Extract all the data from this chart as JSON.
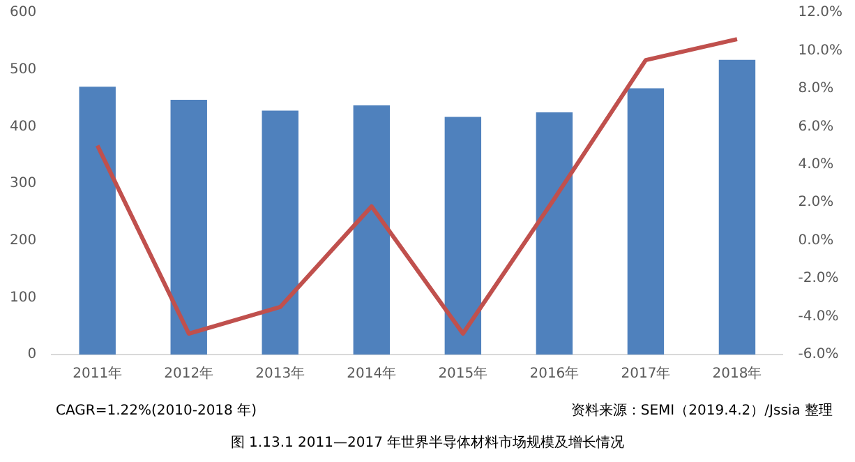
{
  "chart_data": {
    "type": "bar",
    "categories": [
      "2011年",
      "2012年",
      "2013年",
      "2014年",
      "2015年",
      "2016年",
      "2017年",
      "2018年"
    ],
    "series": [
      {
        "color": "#4f81bd",
        "values": [
          470,
          447,
          428,
          437,
          417,
          425,
          467,
          517
        ]
      },
      {
        "type": "line",
        "axis": "y2",
        "color": "#c0504d",
        "marker": "none",
        "values": [
          5.0,
          -4.9,
          -3.5,
          1.8,
          -4.9,
          2.2,
          9.5,
          10.6
        ]
      }
    ],
    "ylim": [
      0,
      600
    ],
    "yticks": [
      0,
      100,
      200,
      300,
      400,
      500,
      600
    ],
    "y2lim": [
      -6,
      12
    ],
    "y2ticks": [
      {
        "value": -6,
        "label": "-6.0%"
      },
      {
        "value": -4,
        "label": "-4.0%"
      },
      {
        "value": -2,
        "label": "-2.0%"
      },
      {
        "value": 0,
        "label": "0.0%"
      },
      {
        "value": 2,
        "label": "2.0%"
      },
      {
        "value": 4,
        "label": "4.0%"
      },
      {
        "value": 6,
        "label": "6.0%"
      },
      {
        "value": 8,
        "label": "8.0%"
      },
      {
        "value": 10,
        "label": "10.0%"
      },
      {
        "value": 12,
        "label": "12.0%"
      }
    ],
    "grid": false,
    "legend": false,
    "annotations": [
      "CAGR=1.22%(2010-2018 年)",
      "资料来源：SEMI（2019.4.2）/Jssia 整理",
      "图 1.13.1 2011—2017 年世界半导体材料市场规模及增长情况"
    ]
  }
}
